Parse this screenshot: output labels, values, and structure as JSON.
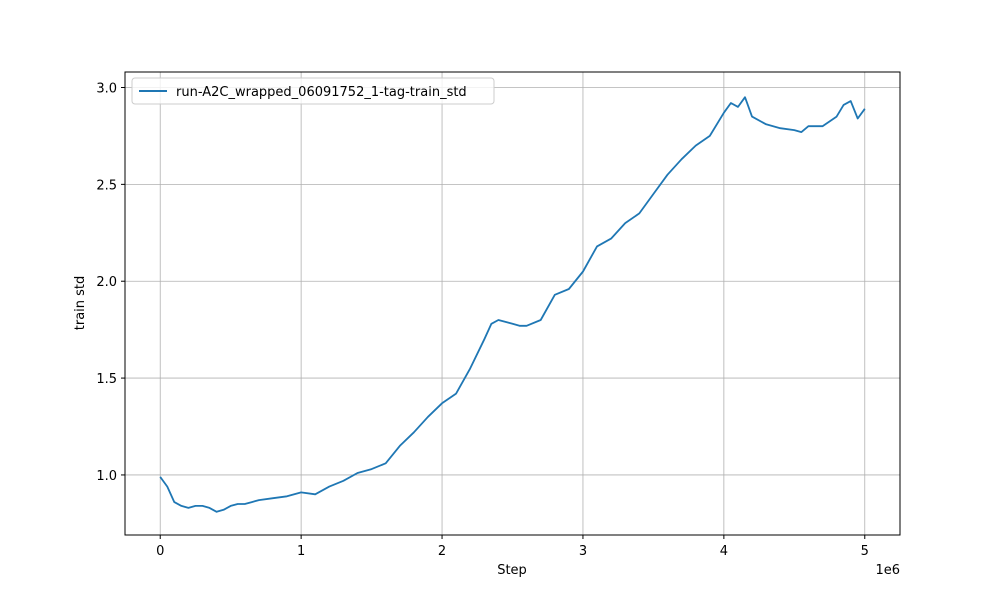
{
  "chart_data": {
    "type": "line",
    "xlabel": "Step",
    "ylabel": "train std",
    "x_offset_label": "1e6",
    "xlim": [
      -0.25,
      5.25
    ],
    "ylim": [
      0.69,
      3.08
    ],
    "xticks": [
      0,
      1,
      2,
      3,
      4,
      5
    ],
    "xtick_labels": [
      "0",
      "1",
      "2",
      "3",
      "4",
      "5"
    ],
    "yticks": [
      1.0,
      1.5,
      2.0,
      2.5,
      3.0
    ],
    "ytick_labels": [
      "1.0",
      "1.5",
      "2.0",
      "2.5",
      "3.0"
    ],
    "grid": true,
    "legend_position": "top-left",
    "series": [
      {
        "name": "run-A2C_wrapped_06091752_1-tag-train_std",
        "color": "#1f77b4",
        "x": [
          0,
          0.05,
          0.1,
          0.15,
          0.2,
          0.25,
          0.3,
          0.35,
          0.4,
          0.45,
          0.5,
          0.55,
          0.6,
          0.65,
          0.7,
          0.8,
          0.9,
          1.0,
          1.1,
          1.2,
          1.3,
          1.4,
          1.5,
          1.6,
          1.7,
          1.8,
          1.9,
          2.0,
          2.1,
          2.2,
          2.3,
          2.35,
          2.4,
          2.45,
          2.5,
          2.55,
          2.6,
          2.7,
          2.8,
          2.9,
          3.0,
          3.1,
          3.2,
          3.3,
          3.4,
          3.5,
          3.6,
          3.7,
          3.8,
          3.9,
          4.0,
          4.05,
          4.1,
          4.15,
          4.2,
          4.3,
          4.4,
          4.5,
          4.55,
          4.6,
          4.7,
          4.8,
          4.85,
          4.9,
          4.95,
          5.0
        ],
        "y": [
          0.99,
          0.94,
          0.86,
          0.84,
          0.83,
          0.84,
          0.84,
          0.83,
          0.81,
          0.82,
          0.84,
          0.85,
          0.85,
          0.86,
          0.87,
          0.88,
          0.89,
          0.91,
          0.9,
          0.94,
          0.97,
          1.01,
          1.03,
          1.06,
          1.15,
          1.22,
          1.3,
          1.37,
          1.42,
          1.55,
          1.7,
          1.78,
          1.8,
          1.79,
          1.78,
          1.77,
          1.77,
          1.8,
          1.93,
          1.96,
          2.05,
          2.18,
          2.22,
          2.3,
          2.35,
          2.45,
          2.55,
          2.63,
          2.7,
          2.75,
          2.87,
          2.92,
          2.9,
          2.95,
          2.85,
          2.81,
          2.79,
          2.78,
          2.77,
          2.8,
          2.8,
          2.85,
          2.91,
          2.93,
          2.84,
          2.89
        ]
      }
    ]
  }
}
